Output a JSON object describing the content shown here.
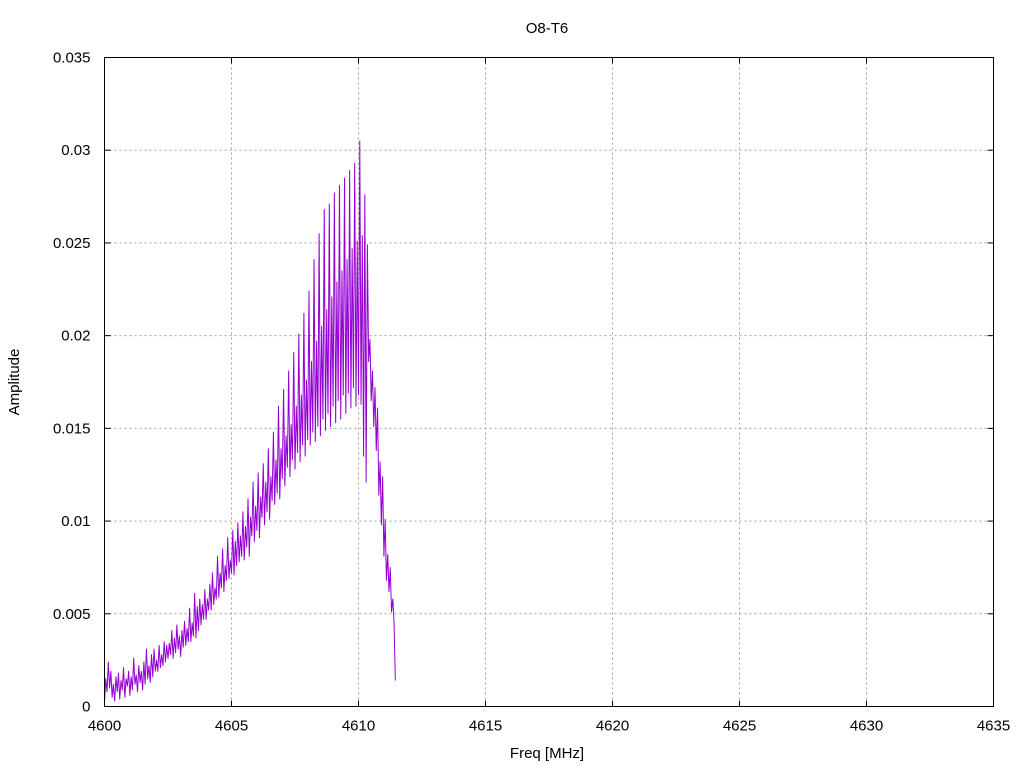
{
  "chart_data": {
    "type": "line",
    "title": "O8-T6",
    "xlabel": "Freq [MHz]",
    "ylabel": "Amplitude",
    "xlim": [
      4600,
      4635
    ],
    "ylim": [
      0,
      0.035
    ],
    "xticks": [
      "4600",
      "4605",
      "4610",
      "4615",
      "4620",
      "4625",
      "4630",
      "4635"
    ],
    "yticks": [
      "0",
      "0.005",
      "0.01",
      "0.015",
      "0.02",
      "0.025",
      "0.03",
      "0.035"
    ],
    "grid": true,
    "legend": "none",
    "series": [
      {
        "color": "#9400d3",
        "x_start": 4600.0,
        "x_step": 0.05,
        "values": [
          0.0002,
          0.0015,
          0.0008,
          0.0024,
          0.001,
          0.0019,
          0.0005,
          0.0012,
          0.0003,
          0.0016,
          0.0008,
          0.0018,
          0.0004,
          0.0014,
          0.0009,
          0.0021,
          0.0005,
          0.0015,
          0.0011,
          0.0019,
          0.0006,
          0.0016,
          0.0009,
          0.0026,
          0.0012,
          0.0017,
          0.0008,
          0.0022,
          0.0013,
          0.0019,
          0.0009,
          0.0024,
          0.0012,
          0.0031,
          0.0015,
          0.0022,
          0.0013,
          0.0028,
          0.0016,
          0.0031,
          0.0019,
          0.0025,
          0.0019,
          0.0033,
          0.0021,
          0.0028,
          0.0022,
          0.0035,
          0.0024,
          0.0033,
          0.0026,
          0.0034,
          0.0028,
          0.0041,
          0.0026,
          0.0037,
          0.0029,
          0.0044,
          0.0031,
          0.0038,
          0.0027,
          0.0041,
          0.0032,
          0.0046,
          0.0033,
          0.0042,
          0.0035,
          0.0053,
          0.0035,
          0.0045,
          0.0038,
          0.0061,
          0.0037,
          0.0054,
          0.0041,
          0.0058,
          0.0044,
          0.0055,
          0.0047,
          0.0063,
          0.0047,
          0.0058,
          0.0052,
          0.0066,
          0.0052,
          0.0072,
          0.0055,
          0.0064,
          0.0058,
          0.0081,
          0.0059,
          0.0072,
          0.0064,
          0.0085,
          0.0062,
          0.0076,
          0.0068,
          0.0091,
          0.0069,
          0.0079,
          0.0072,
          0.0095,
          0.0071,
          0.0089,
          0.0076,
          0.0099,
          0.0078,
          0.0092,
          0.0081,
          0.0105,
          0.0079,
          0.0097,
          0.0086,
          0.0112,
          0.0081,
          0.0102,
          0.0092,
          0.0121,
          0.0089,
          0.0108,
          0.0095,
          0.0126,
          0.0091,
          0.0113,
          0.0102,
          0.0131,
          0.0098,
          0.0121,
          0.0105,
          0.0139,
          0.0101,
          0.0124,
          0.0111,
          0.0148,
          0.0109,
          0.0133,
          0.0115,
          0.0162,
          0.0112,
          0.0139,
          0.0123,
          0.0171,
          0.0119,
          0.0146,
          0.0129,
          0.0181,
          0.0124,
          0.0152,
          0.0133,
          0.0191,
          0.0128,
          0.0162,
          0.0137,
          0.0201,
          0.0132,
          0.0168,
          0.0141,
          0.0212,
          0.0135,
          0.0176,
          0.0144,
          0.0224,
          0.0141,
          0.0186,
          0.0148,
          0.0241,
          0.0143,
          0.0197,
          0.0151,
          0.0255,
          0.0146,
          0.0205,
          0.0155,
          0.0268,
          0.0149,
          0.0214,
          0.0158,
          0.0271,
          0.0151,
          0.0221,
          0.0162,
          0.0277,
          0.0153,
          0.0229,
          0.0165,
          0.0281,
          0.0155,
          0.0235,
          0.0168,
          0.0285,
          0.0158,
          0.0241,
          0.0169,
          0.0289,
          0.0161,
          0.0247,
          0.0172,
          0.0293,
          0.0162,
          0.0251,
          0.0168,
          0.0305,
          0.0163,
          0.0254,
          0.0135,
          0.0276,
          0.0121,
          0.0249,
          0.0186,
          0.0198,
          0.0165,
          0.0181,
          0.0151,
          0.0172,
          0.0138,
          0.0161,
          0.0114,
          0.0132,
          0.0098,
          0.0124,
          0.0081,
          0.0101,
          0.0068,
          0.0082,
          0.0062,
          0.0075,
          0.0051,
          0.0058,
          0.0045,
          0.0014
        ]
      }
    ]
  }
}
